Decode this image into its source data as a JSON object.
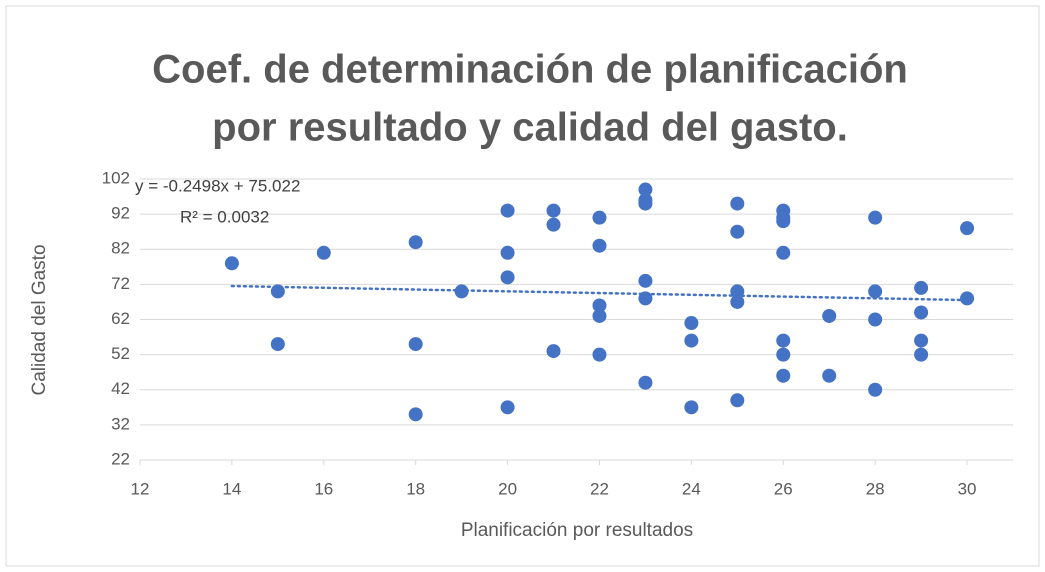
{
  "chart_data": {
    "type": "scatter",
    "title": [
      "Coef. de determinación de planificación",
      "por resultado y calidad del gasto."
    ],
    "x_label": "Planificación por resultados",
    "y_label": "Calidad del Gasto",
    "color": "#4472c4",
    "grid": true,
    "xlim": [
      12,
      31
    ],
    "xticks": [
      12,
      14,
      16,
      18,
      20,
      22,
      24,
      26,
      28,
      30
    ],
    "ylim": [
      22,
      102
    ],
    "yticks": [
      22,
      32,
      42,
      52,
      62,
      72,
      82,
      92,
      102
    ],
    "x": [
      14,
      15,
      15,
      16,
      18,
      18,
      18,
      19,
      20,
      20,
      20,
      20,
      21,
      21,
      21,
      22,
      22,
      22,
      22,
      22,
      23,
      23,
      23,
      23,
      23,
      23,
      24,
      24,
      24,
      25,
      25,
      25,
      25,
      25,
      26,
      26,
      26,
      26,
      26,
      26,
      26,
      27,
      27,
      28,
      28,
      28,
      28,
      29,
      29,
      29,
      29,
      30,
      30
    ],
    "values": [
      78,
      70,
      55,
      81,
      84,
      55,
      35,
      70,
      93,
      81,
      74,
      37,
      93,
      89,
      53,
      91,
      83,
      66,
      63,
      52,
      99,
      96,
      95,
      73,
      68,
      44,
      61,
      56,
      37,
      95,
      87,
      70,
      67,
      39,
      93,
      91,
      90,
      81,
      56,
      52,
      46,
      63,
      46,
      91,
      70,
      62,
      42,
      71,
      64,
      56,
      52,
      88,
      68
    ],
    "trendline": {
      "slope": -0.2498,
      "intercept": 75.022,
      "equation": "y = -0.2498x + 75.022",
      "r2": "R² = 0.0032",
      "color": "#4472c4"
    }
  }
}
